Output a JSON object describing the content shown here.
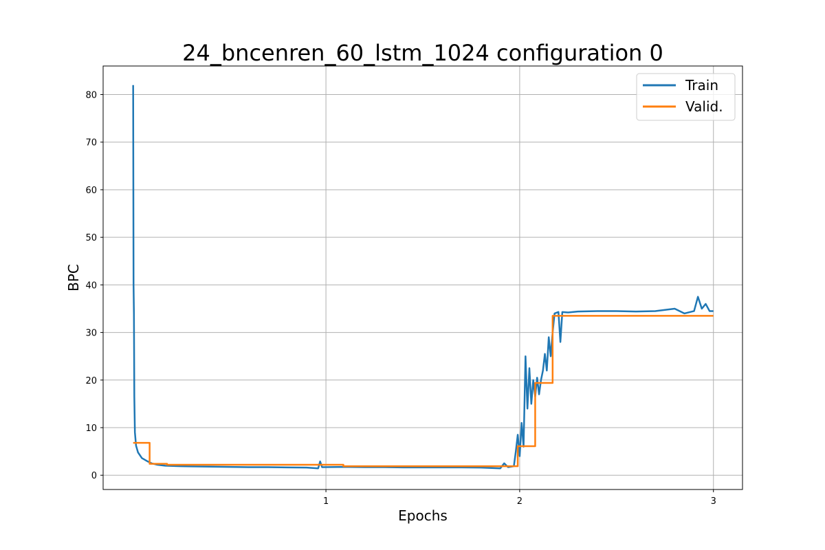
{
  "chart_data": {
    "type": "line",
    "title": "24_bncenren_60_lstm_1024 configuration 0",
    "xlabel": "Epochs",
    "ylabel": "BPC",
    "xlim": [
      -0.15,
      3.15
    ],
    "ylim": [
      -3,
      86
    ],
    "xticks": [
      1,
      2,
      3
    ],
    "yticks": [
      0,
      10,
      20,
      30,
      40,
      50,
      60,
      70,
      80
    ],
    "grid": true,
    "legend_position": "top-right",
    "series": [
      {
        "name": "Train",
        "color": "#1f77b4",
        "points": [
          [
            0.005,
            82.0
          ],
          [
            0.007,
            40.0
          ],
          [
            0.009,
            34.0
          ],
          [
            0.011,
            16.5
          ],
          [
            0.014,
            9.0
          ],
          [
            0.02,
            6.2
          ],
          [
            0.03,
            4.8
          ],
          [
            0.05,
            3.6
          ],
          [
            0.08,
            2.9
          ],
          [
            0.1,
            2.5
          ],
          [
            0.13,
            2.2
          ],
          [
            0.17,
            2.0
          ],
          [
            0.25,
            1.9
          ],
          [
            0.3,
            1.85
          ],
          [
            0.4,
            1.8
          ],
          [
            0.5,
            1.75
          ],
          [
            0.6,
            1.7
          ],
          [
            0.7,
            1.7
          ],
          [
            0.8,
            1.65
          ],
          [
            0.9,
            1.6
          ],
          [
            0.96,
            1.45
          ],
          [
            0.97,
            2.9
          ],
          [
            0.98,
            1.7
          ],
          [
            1.1,
            1.75
          ],
          [
            1.2,
            1.7
          ],
          [
            1.3,
            1.7
          ],
          [
            1.4,
            1.65
          ],
          [
            1.5,
            1.65
          ],
          [
            1.6,
            1.65
          ],
          [
            1.7,
            1.65
          ],
          [
            1.8,
            1.6
          ],
          [
            1.9,
            1.45
          ],
          [
            1.92,
            2.5
          ],
          [
            1.94,
            1.7
          ],
          [
            1.97,
            1.9
          ],
          [
            1.98,
            5.0
          ],
          [
            1.99,
            8.5
          ],
          [
            2.0,
            4.0
          ],
          [
            2.01,
            11.0
          ],
          [
            2.02,
            6.0
          ],
          [
            2.03,
            25.0
          ],
          [
            2.04,
            14.0
          ],
          [
            2.05,
            22.5
          ],
          [
            2.06,
            15.0
          ],
          [
            2.07,
            20.0
          ],
          [
            2.08,
            16.5
          ],
          [
            2.09,
            20.5
          ],
          [
            2.1,
            17.0
          ],
          [
            2.11,
            20.0
          ],
          [
            2.12,
            22.0
          ],
          [
            2.13,
            25.5
          ],
          [
            2.14,
            22.0
          ],
          [
            2.15,
            29.0
          ],
          [
            2.16,
            25.0
          ],
          [
            2.17,
            30.0
          ],
          [
            2.18,
            34.0
          ],
          [
            2.2,
            34.3
          ],
          [
            2.21,
            28.0
          ],
          [
            2.22,
            34.3
          ],
          [
            2.25,
            34.2
          ],
          [
            2.3,
            34.4
          ],
          [
            2.4,
            34.5
          ],
          [
            2.5,
            34.5
          ],
          [
            2.6,
            34.4
          ],
          [
            2.7,
            34.5
          ],
          [
            2.8,
            35.0
          ],
          [
            2.85,
            34.0
          ],
          [
            2.9,
            34.5
          ],
          [
            2.92,
            37.5
          ],
          [
            2.94,
            35.0
          ],
          [
            2.96,
            36.0
          ],
          [
            2.98,
            34.5
          ],
          [
            3.0,
            34.5
          ]
        ]
      },
      {
        "name": "Valid.",
        "color": "#ff7f0e",
        "points": [
          [
            0.005,
            6.8
          ],
          [
            0.09,
            6.8
          ],
          [
            0.09,
            2.4
          ],
          [
            0.18,
            2.4
          ],
          [
            0.18,
            2.2
          ],
          [
            1.09,
            2.2
          ],
          [
            1.09,
            1.9
          ],
          [
            1.99,
            1.9
          ],
          [
            1.99,
            6.1
          ],
          [
            2.08,
            6.1
          ],
          [
            2.08,
            19.4
          ],
          [
            2.17,
            19.4
          ],
          [
            2.17,
            33.5
          ],
          [
            3.0,
            33.5
          ]
        ]
      }
    ]
  }
}
